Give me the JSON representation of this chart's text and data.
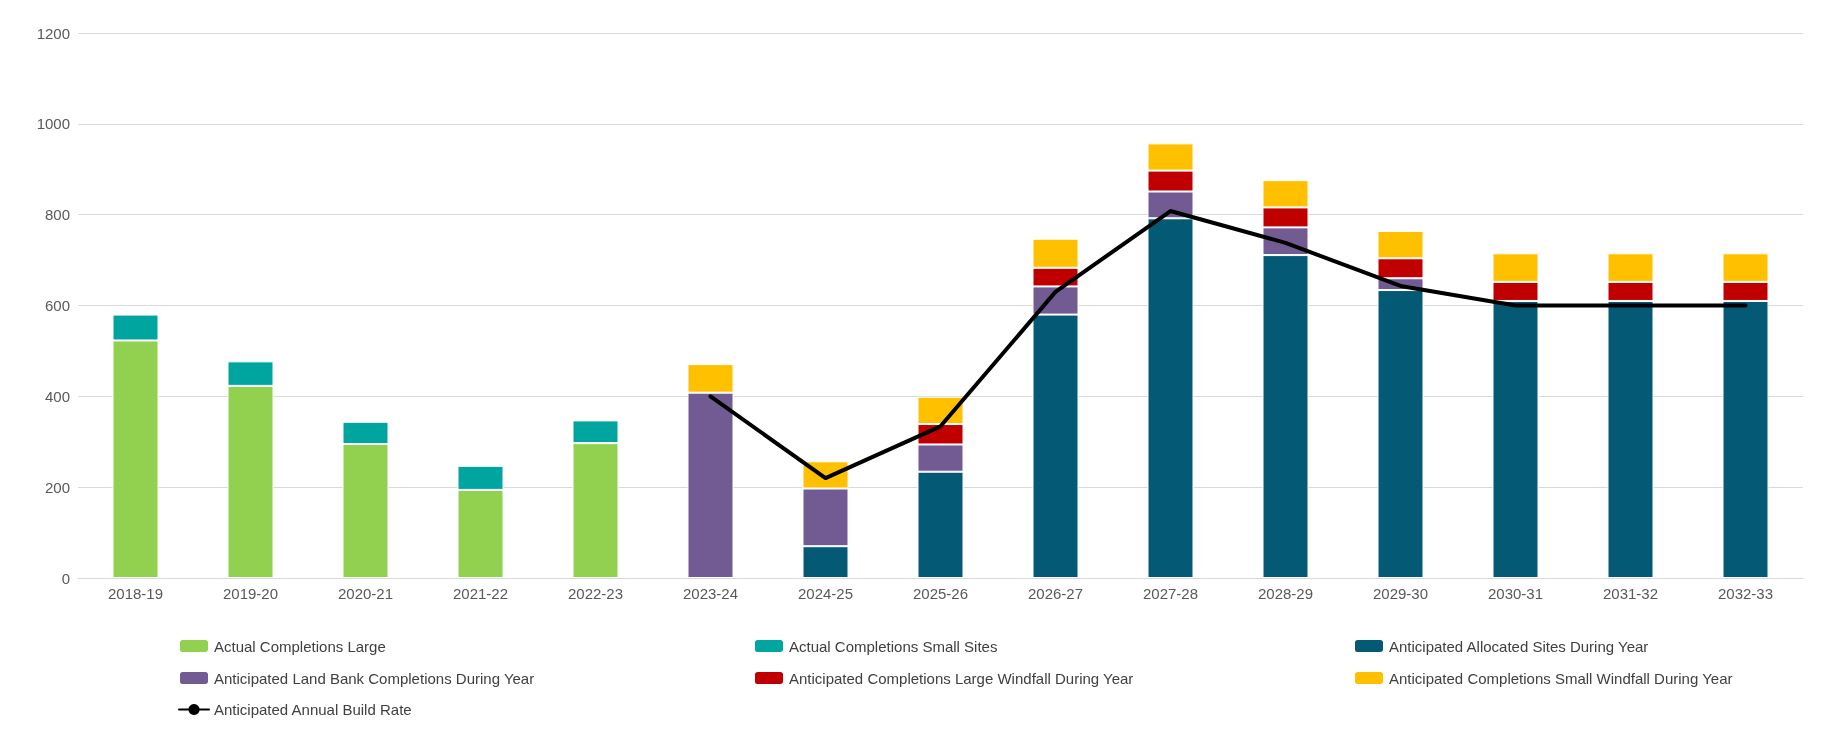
{
  "chart_data": {
    "type": "bar",
    "stacked": true,
    "categories": [
      "2018-19",
      "2019-20",
      "2020-21",
      "2021-22",
      "2022-23",
      "2023-24",
      "2024-25",
      "2025-26",
      "2026-27",
      "2027-28",
      "2028-29",
      "2029-30",
      "2030-31",
      "2031-32",
      "2032-33"
    ],
    "series": [
      {
        "name": "Actual Completions Large",
        "color": "#92d050",
        "values": [
          523,
          423,
          295,
          194,
          297,
          null,
          null,
          null,
          null,
          null,
          null,
          null,
          null,
          null,
          null
        ]
      },
      {
        "name": "Actual Completions Small Sites",
        "color": "#00a5a0",
        "values": [
          57,
          54,
          49,
          53,
          50,
          null,
          null,
          null,
          null,
          null,
          null,
          null,
          null,
          null,
          null
        ]
      },
      {
        "name": "Anticipated Allocated Sites During Year",
        "color": "#045a74",
        "values": [
          null,
          null,
          null,
          null,
          null,
          null,
          70,
          234,
          580,
          792,
          711,
          634,
          610,
          610,
          610
        ]
      },
      {
        "name": "Anticipated Land Bank Completions During Year",
        "color": "#725b93",
        "values": [
          null,
          null,
          null,
          null,
          null,
          408,
          127,
          60,
          62,
          59,
          61,
          26,
          null,
          null,
          null
        ]
      },
      {
        "name": "Anticipated Completions Large Windfall During Year",
        "color": "#c00000",
        "values": [
          null,
          null,
          null,
          null,
          null,
          null,
          null,
          45,
          41,
          46,
          44,
          44,
          42,
          42,
          42
        ]
      },
      {
        "name": "Anticipated Completions Small Windfall During Year",
        "color": "#ffc000",
        "values": [
          null,
          null,
          null,
          null,
          null,
          63,
          60,
          60,
          64,
          60,
          60,
          60,
          63,
          63,
          63
        ]
      },
      {
        "name": "Anticipated Annual Build Rate",
        "type": "line",
        "color": "#000000",
        "values": [
          null,
          null,
          null,
          null,
          null,
          400,
          220,
          334,
          630,
          808,
          738,
          643,
          600,
          600,
          600
        ]
      }
    ],
    "ylim": [
      0,
      1200
    ],
    "yticks": [
      0,
      200,
      400,
      600,
      800,
      {
        "value": 1000,
        "label": "1000"
      },
      {
        "value": 1200,
        "label": "1200"
      }
    ],
    "grid": "y",
    "legend": "bottom",
    "marker": "none",
    "line_style": "solid"
  }
}
